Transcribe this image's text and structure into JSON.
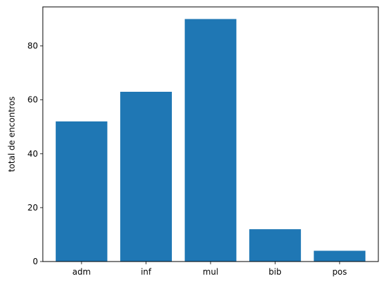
{
  "chart_data": {
    "type": "bar",
    "categories": [
      "adm",
      "inf",
      "mul",
      "bib",
      "pos"
    ],
    "values": [
      52,
      63,
      90,
      12,
      4
    ],
    "title": "",
    "xlabel": "",
    "ylabel": "total de encontros",
    "ylim": [
      0,
      94.5
    ],
    "yticks": [
      0,
      20,
      40,
      60,
      80
    ],
    "grid": false,
    "legend": "none",
    "bar_color": "#1f77b4"
  }
}
